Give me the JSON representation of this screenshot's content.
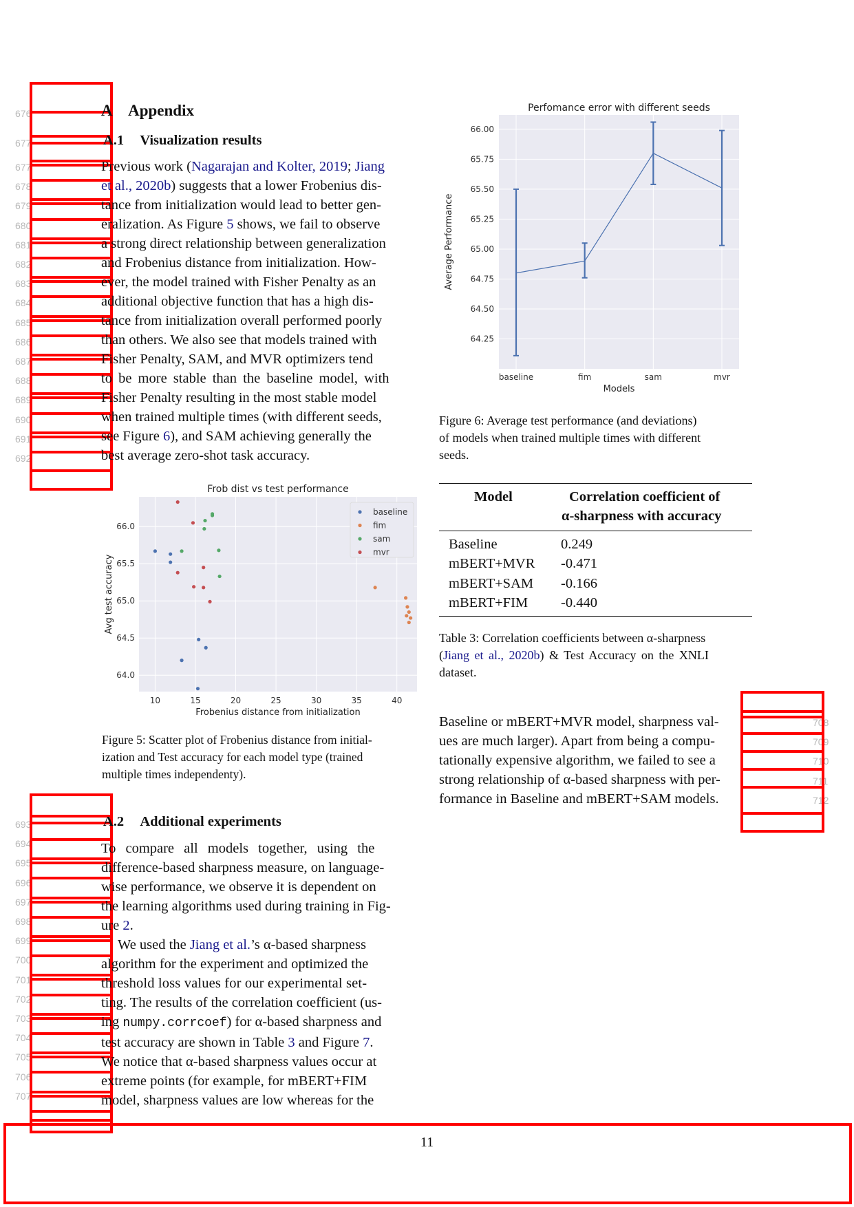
{
  "left_line_numbers_top": [
    "676",
    "677"
  ],
  "left_line_numbers_para": [
    "677",
    "678",
    "679",
    "680",
    "681",
    "682",
    "683",
    "684",
    "685",
    "686",
    "687",
    "688",
    "689",
    "690",
    "691",
    "692"
  ],
  "left_line_numbers_sec2": [
    "693",
    "694",
    "695",
    "696",
    "697",
    "698",
    "699",
    "700",
    "701",
    "702",
    "703",
    "704",
    "705",
    "706",
    "707"
  ],
  "right_line_numbers": [
    "708",
    "709",
    "710",
    "711",
    "712"
  ],
  "appendix": {
    "number": "A",
    "title": "Appendix"
  },
  "sec_a1": {
    "number": "A.1",
    "title": "Visualization results"
  },
  "para1_lines": [
    [
      "Previous work (",
      "Nagarajan and Kolter, 2019",
      "; ",
      "Jiang",
      ""
    ],
    [
      "",
      "et al., 2020b",
      ") suggests that a lower Frobenius dis-",
      "",
      ""
    ],
    [
      "tance from initialization would lead to better gen-",
      "",
      "",
      "",
      ""
    ],
    [
      "eralization. As Figure ",
      "5",
      " shows, we fail to observe",
      "",
      ""
    ],
    [
      "a strong direct relationship between generalization",
      "",
      "",
      "",
      ""
    ],
    [
      "and Frobenius distance from initialization. How-",
      "",
      "",
      "",
      ""
    ],
    [
      "ever, the model trained with Fisher Penalty as an",
      "",
      "",
      "",
      ""
    ],
    [
      "additional objective function that has a high dis-",
      "",
      "",
      "",
      ""
    ],
    [
      "tance from initialization overall performed poorly",
      "",
      "",
      "",
      ""
    ],
    [
      "than others. We also see that models trained with",
      "",
      "",
      "",
      ""
    ],
    [
      "Fisher Penalty, SAM, and MVR optimizers tend",
      "",
      "",
      "",
      ""
    ],
    [
      "to be more stable than the baseline model, with",
      "",
      "",
      "",
      ""
    ],
    [
      "Fisher Penalty resulting in the most stable model",
      "",
      "",
      "",
      ""
    ],
    [
      "when trained multiple times (with different seeds,",
      "",
      "",
      "",
      ""
    ],
    [
      "see Figure ",
      "6",
      "), and SAM achieving generally the",
      "",
      ""
    ],
    [
      "best average zero-shot task accuracy.",
      "",
      "",
      "",
      ""
    ]
  ],
  "fig5": {
    "caption": [
      "Figure 5: Scatter plot of Frobenius distance from initial-",
      "ization and Test accuracy for each model type (trained",
      "multiple times independenty)."
    ]
  },
  "fig6": {
    "caption": [
      "Figure 6:  Average test performance (and deviations)",
      "of models when trained multiple times with different",
      "seeds."
    ]
  },
  "sec_a2": {
    "number": "A.2",
    "title": "Additional experiments"
  },
  "para2_lines": [
    "To compare all models together, using the",
    "difference-based sharpness measure, on language-",
    "wise performance, we observe it is dependent on",
    "the learning algorithms used during training in Fig-"
  ],
  "para2_last": {
    "pre": "ure ",
    "ref": "2",
    "post": "."
  },
  "para3": {
    "l1_pre": "We used the ",
    "l1_cite": "Jiang et al.",
    "l1_post": "’s α-based sharpness",
    "l2": "algorithm for the experiment and optimized the",
    "l3": "threshold loss values for our experimental set-",
    "l4": "ting. The results of the correlation coefficient (us-",
    "l5_pre": "ing ",
    "l5_code": "numpy.corrcoef",
    "l5_post": ") for α-based sharpness and",
    "l6_pre": "test accuracy are shown in Table ",
    "l6_ref1": "3",
    "l6_mid": " and Figure ",
    "l6_ref2": "7",
    "l6_post": ".",
    "l7": "We notice that α-based sharpness values occur at",
    "l8": "extreme points (for example, for mBERT+FIM",
    "l9": "model, sharpness values are low whereas for the"
  },
  "table3": {
    "header_col1": "Model",
    "header_col2_l1": "Correlation coefficient of",
    "header_col2_l2": "α-sharpness with accuracy",
    "rows": [
      {
        "model": "Baseline",
        "value": "0.249"
      },
      {
        "model": "mBERT+MVR",
        "value": "-0.471"
      },
      {
        "model": "mBERT+SAM",
        "value": "-0.166"
      },
      {
        "model": "mBERT+FIM",
        "value": "-0.440"
      }
    ],
    "caption_l1": "Table 3: Correlation coefficients between α-sharpness",
    "caption_l2_pre": "(",
    "caption_l2_cite": "Jiang et al., 2020b",
    "caption_l2_post": ") & Test Accuracy on the XNLI",
    "caption_l3": "dataset."
  },
  "right_para": [
    "Baseline or mBERT+MVR model, sharpness val-",
    "ues are much larger). Apart from being a compu-",
    "tationally expensive algorithm, we failed to see a",
    "strong relationship of α-based sharpness with per-",
    "formance in Baseline and mBERT+SAM models."
  ],
  "page_number": "11",
  "chart_data": [
    {
      "type": "scatter",
      "title": "Frob dist vs test performance",
      "xlabel": "Frobenius distance from initialization",
      "ylabel": "Avg test accuracy",
      "xlim": [
        8,
        42.5
      ],
      "ylim": [
        63.78,
        66.4
      ],
      "xticks": [
        10,
        15,
        20,
        25,
        30,
        35,
        40
      ],
      "yticks": [
        64.0,
        64.5,
        65.0,
        65.5,
        66.0
      ],
      "grid": true,
      "legend": "top-right",
      "series": [
        {
          "name": "baseline",
          "color": "#4c72b0",
          "points": [
            [
              10.0,
              65.67
            ],
            [
              11.9,
              65.63
            ],
            [
              11.9,
              65.52
            ],
            [
              13.3,
              64.2
            ],
            [
              15.3,
              63.82
            ],
            [
              15.4,
              64.48
            ],
            [
              16.3,
              64.37
            ]
          ]
        },
        {
          "name": "fim",
          "color": "#dd8452",
          "points": [
            [
              37.3,
              65.18
            ],
            [
              41.1,
              65.04
            ],
            [
              41.3,
              64.92
            ],
            [
              41.5,
              64.85
            ],
            [
              41.2,
              64.8
            ],
            [
              41.7,
              64.77
            ],
            [
              41.5,
              64.71
            ]
          ]
        },
        {
          "name": "sam",
          "color": "#55a868",
          "points": [
            [
              13.3,
              65.67
            ],
            [
              16.2,
              66.08
            ],
            [
              16.1,
              65.97
            ],
            [
              17.1,
              66.17
            ],
            [
              17.1,
              66.15
            ],
            [
              17.9,
              65.68
            ],
            [
              18.0,
              65.33
            ]
          ]
        },
        {
          "name": "mvr",
          "color": "#c44e52",
          "points": [
            [
              12.8,
              66.33
            ],
            [
              14.7,
              66.05
            ],
            [
              12.8,
              65.38
            ],
            [
              16.0,
              65.45
            ],
            [
              14.8,
              65.19
            ],
            [
              16.0,
              65.18
            ],
            [
              16.8,
              64.99
            ]
          ]
        }
      ]
    },
    {
      "type": "line",
      "title": "Perfomance error with different seeds",
      "xlabel": "Models",
      "ylabel": "Average Performance",
      "categories": [
        "baseline",
        "fim",
        "sam",
        "mvr"
      ],
      "values": [
        64.8,
        64.9,
        65.8,
        65.51
      ],
      "error_low": [
        64.11,
        64.76,
        65.54,
        65.03
      ],
      "error_high": [
        65.5,
        65.05,
        66.06,
        65.99
      ],
      "ylim": [
        64.0,
        66.12
      ],
      "yticks": [
        64.25,
        64.5,
        64.75,
        65.0,
        65.25,
        65.5,
        65.75,
        66.0
      ],
      "yticklabels": [
        "64.25",
        "64.50",
        "64.75",
        "65.00",
        "65.25",
        "65.50",
        "65.75",
        "66.00"
      ],
      "grid": true,
      "color": "#4c72b0"
    }
  ]
}
